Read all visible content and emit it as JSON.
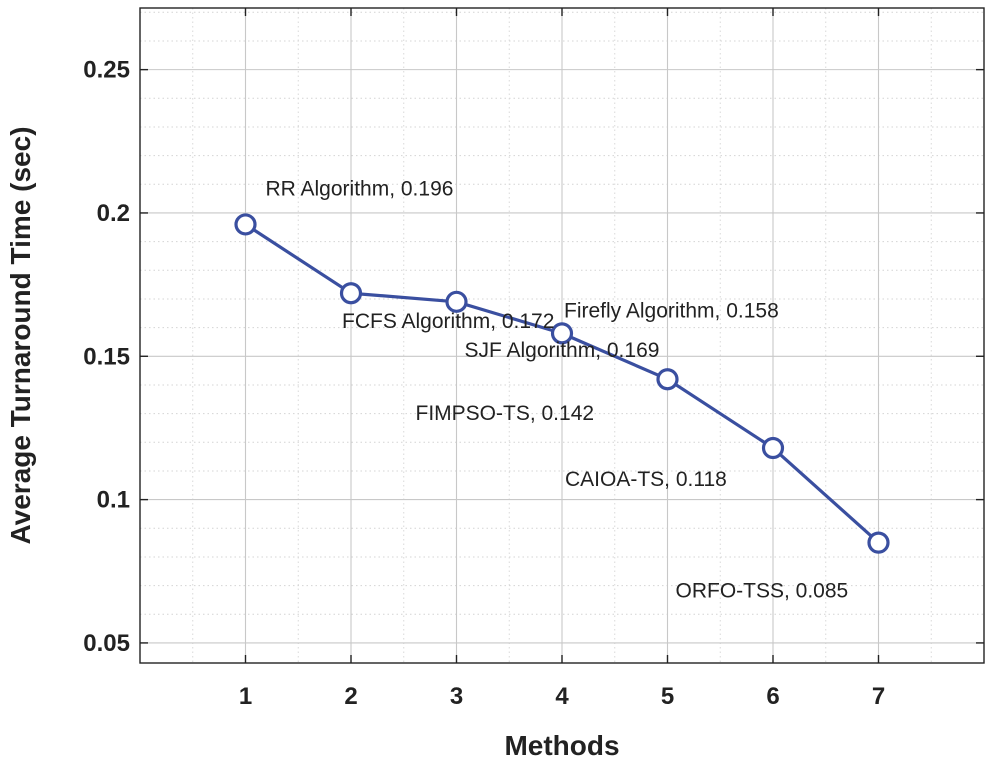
{
  "chart_data": {
    "type": "line",
    "title": "",
    "xlabel": "Methods",
    "ylabel": "Average Turnaround Time (sec)",
    "x": [
      1,
      2,
      3,
      4,
      5,
      6,
      7
    ],
    "values": [
      0.196,
      0.172,
      0.169,
      0.158,
      0.142,
      0.118,
      0.085
    ],
    "point_labels": [
      "RR Algorithm, 0.196",
      "FCFS Algorithm, 0.172",
      "SJF Algorithm, 0.169",
      "Firefly Algorithm, 0.158",
      "FIMPSO-TS, 0.142",
      "CAIOA-TS, 0.118",
      "ORFO-TSS, 0.085"
    ],
    "xticks": [
      "1",
      "2",
      "3",
      "4",
      "5",
      "6",
      "7"
    ],
    "yticks": [
      "0.05",
      "0.1",
      "0.15",
      "0.2",
      "0.25"
    ],
    "xlim": [
      0,
      8
    ],
    "ylim": [
      0.043,
      0.2715
    ],
    "grid": true,
    "line_color": "#3a4fa0",
    "marker": "circle"
  }
}
